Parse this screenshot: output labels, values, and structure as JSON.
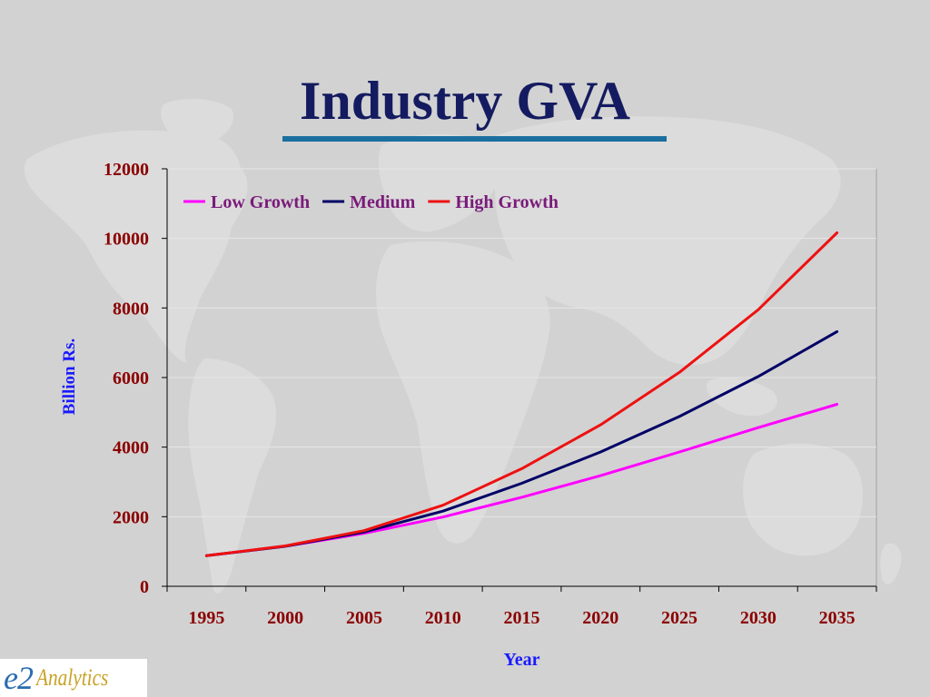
{
  "slide": {
    "title": "Industry GVA"
  },
  "logo": {
    "mark": "e2",
    "wordmark": "Analytics"
  },
  "colors": {
    "background": "#d2d2d2",
    "title": "#141b60",
    "title_rule": "#1a6f9f",
    "tick_labels": "#8b0000",
    "axis_labels": "#1a1aff",
    "legend_text": "#7a1a7a"
  },
  "chart_data": {
    "type": "line",
    "title": "",
    "xlabel": "Year",
    "ylabel": "Billion Rs.",
    "x": [
      1995,
      2000,
      2005,
      2010,
      2015,
      2020,
      2025,
      2030,
      2035
    ],
    "ylim": [
      0,
      12000
    ],
    "yticks": [
      0,
      2000,
      4000,
      6000,
      8000,
      10000,
      12000
    ],
    "grid": true,
    "legend_position": "top-left",
    "series": [
      {
        "name": "Low Growth",
        "color": "#ff00ff",
        "values": [
          880,
          1150,
          1520,
          1990,
          2560,
          3180,
          3860,
          4560,
          5230
        ]
      },
      {
        "name": "Medium",
        "color": "#000066",
        "values": [
          880,
          1150,
          1560,
          2160,
          2960,
          3860,
          4880,
          6030,
          7320
        ]
      },
      {
        "name": "High Growth",
        "color": "#ee1111",
        "values": [
          880,
          1160,
          1600,
          2330,
          3380,
          4640,
          6150,
          7950,
          10160
        ]
      }
    ]
  }
}
